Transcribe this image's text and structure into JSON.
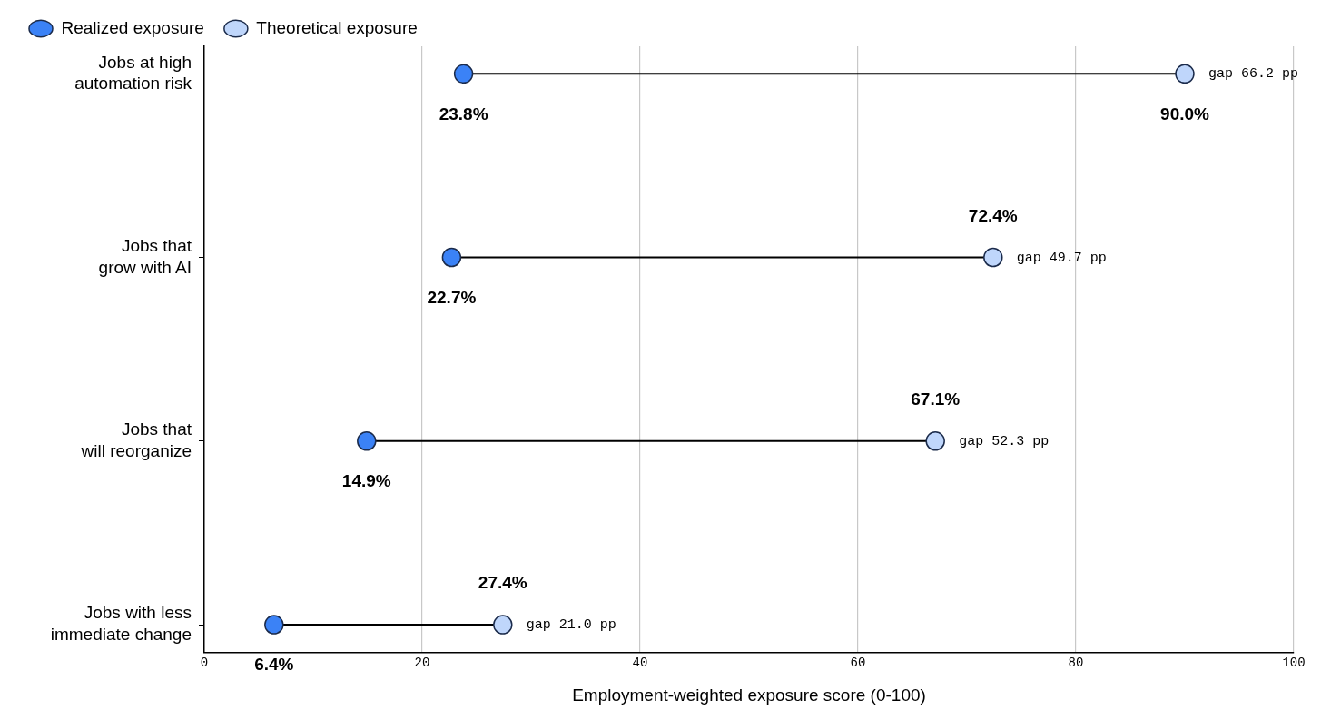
{
  "chart_data": {
    "type": "scatter",
    "orientation": "horizontal",
    "categories": [
      "Jobs at high\nautomation risk",
      "Jobs that\ngrow with AI",
      "Jobs that\nwill reorganize",
      "Jobs with less\nimmediate change"
    ],
    "xlabel": "Employment-weighted exposure score (0-100)",
    "xlim": [
      0,
      100
    ],
    "xticks": [
      0,
      20,
      40,
      60,
      80,
      100
    ],
    "grid": "x",
    "legend": "top left",
    "marker": "circle",
    "series": [
      {
        "name": "Realized exposure",
        "color": "#3b82f6",
        "values": [
          23.8,
          22.7,
          14.9,
          6.4
        ],
        "value_labels": [
          "23.8%",
          "22.7%",
          "14.9%",
          "6.4%"
        ]
      },
      {
        "name": "Theoretical exposure",
        "color": "#bfd6fb",
        "values": [
          90.0,
          72.4,
          67.1,
          27.4
        ],
        "value_labels": [
          "90.0%",
          "72.4%",
          "67.1%",
          "27.4%"
        ]
      }
    ],
    "annotations": [
      {
        "text": "gap 66.2 pp",
        "x": 90.0,
        "y": "Jobs at high\nautomation risk"
      },
      {
        "text": "gap 49.7 pp",
        "x": 72.4,
        "y": "Jobs that\ngrow with AI"
      },
      {
        "text": "gap 52.3 pp",
        "x": 67.1,
        "y": "Jobs that\nwill reorganize"
      },
      {
        "text": "gap 21.0 pp",
        "x": 27.4,
        "y": "Jobs with less\nimmediate change"
      }
    ]
  }
}
